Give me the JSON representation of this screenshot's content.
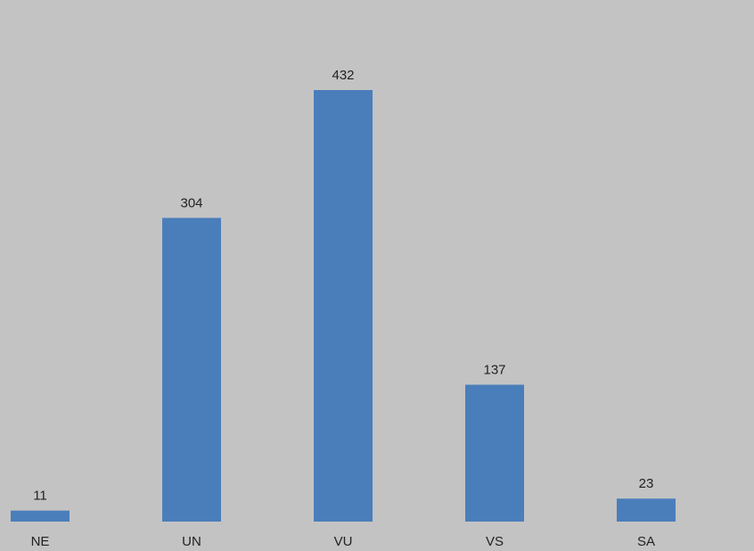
{
  "chart_data": {
    "type": "bar",
    "categories": [
      "NE",
      "UN",
      "VU",
      "VS",
      "SA"
    ],
    "values": [
      11,
      304,
      432,
      137,
      23
    ],
    "color": "#4a7ebb"
  }
}
